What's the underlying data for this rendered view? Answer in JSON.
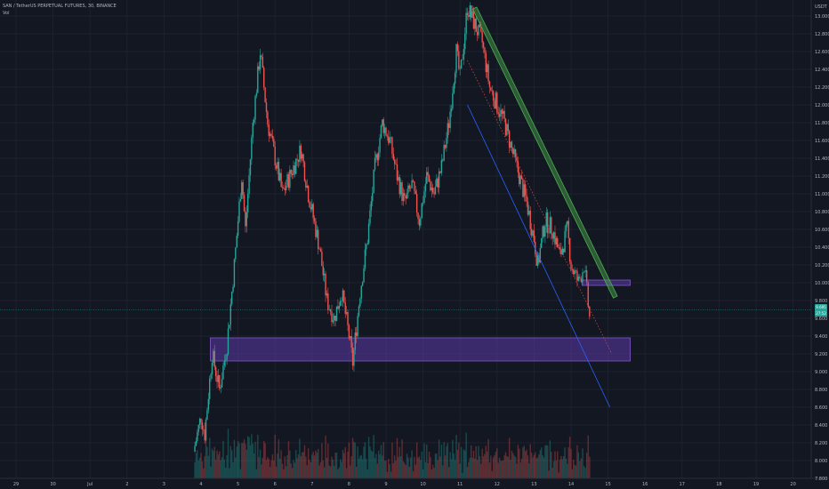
{
  "header": {
    "symbol_line": "SAN / TetherUS PERPETUAL FUTURES, 30, BINANCE",
    "vol_label": "Vol"
  },
  "price_axis": {
    "currency": "USDT",
    "ticks": [
      "13.000",
      "12.800",
      "12.600",
      "12.400",
      "12.200",
      "12.000",
      "11.800",
      "11.600",
      "11.400",
      "11.200",
      "11.000",
      "10.800",
      "10.600",
      "10.400",
      "10.200",
      "10.000",
      "9.800",
      "9.600",
      "9.400",
      "9.200",
      "9.000",
      "8.800",
      "8.600",
      "8.400",
      "8.200",
      "8.000",
      "7.800"
    ],
    "last_price": "9.695",
    "last_price_sub": "27:52"
  },
  "time_axis": {
    "ticks": [
      "29",
      "30",
      "Jul",
      "2",
      "3",
      "4",
      "5",
      "6",
      "7",
      "8",
      "9",
      "10",
      "11",
      "12",
      "13",
      "14",
      "15",
      "16",
      "17",
      "18",
      "19",
      "20"
    ]
  },
  "colors": {
    "background": "#131722",
    "up": "#26a69a",
    "down": "#ef5350",
    "zone": "#5b3aa8",
    "channel": "#4caf50",
    "trendline": "#2962ff"
  },
  "chart_data": {
    "type": "candlestick",
    "symbol": "SAN / TetherUS PERPETUAL FUTURES",
    "interval": "30",
    "exchange": "BINANCE",
    "y_unit": "USDT",
    "ylim": [
      7.8,
      13.1
    ],
    "x_range": [
      "2021-06-29",
      "2021-07-20"
    ],
    "last_price": 9.695,
    "price_path": [
      {
        "day": 4.8,
        "price": 8.1
      },
      {
        "day": 5.0,
        "price": 8.5
      },
      {
        "day": 5.1,
        "price": 8.3
      },
      {
        "day": 5.3,
        "price": 9.2
      },
      {
        "day": 5.5,
        "price": 8.8
      },
      {
        "day": 5.7,
        "price": 9.3
      },
      {
        "day": 5.9,
        "price": 10.2
      },
      {
        "day": 6.1,
        "price": 11.2
      },
      {
        "day": 6.2,
        "price": 10.6
      },
      {
        "day": 6.4,
        "price": 11.8
      },
      {
        "day": 6.5,
        "price": 12.2
      },
      {
        "day": 6.6,
        "price": 12.6
      },
      {
        "day": 6.8,
        "price": 11.8
      },
      {
        "day": 7.0,
        "price": 11.4
      },
      {
        "day": 7.2,
        "price": 11.0
      },
      {
        "day": 7.5,
        "price": 11.3
      },
      {
        "day": 7.7,
        "price": 11.5
      },
      {
        "day": 7.9,
        "price": 11.0
      },
      {
        "day": 8.2,
        "price": 10.4
      },
      {
        "day": 8.4,
        "price": 9.8
      },
      {
        "day": 8.6,
        "price": 9.6
      },
      {
        "day": 8.8,
        "price": 9.9
      },
      {
        "day": 9.0,
        "price": 9.4
      },
      {
        "day": 9.1,
        "price": 9.1
      },
      {
        "day": 9.3,
        "price": 9.9
      },
      {
        "day": 9.5,
        "price": 10.5
      },
      {
        "day": 9.7,
        "price": 11.3
      },
      {
        "day": 9.9,
        "price": 11.8
      },
      {
        "day": 10.1,
        "price": 11.6
      },
      {
        "day": 10.3,
        "price": 11.2
      },
      {
        "day": 10.5,
        "price": 10.9
      },
      {
        "day": 10.7,
        "price": 11.1
      },
      {
        "day": 10.9,
        "price": 10.7
      },
      {
        "day": 11.1,
        "price": 11.2
      },
      {
        "day": 11.3,
        "price": 11.0
      },
      {
        "day": 11.5,
        "price": 11.3
      },
      {
        "day": 11.7,
        "price": 11.8
      },
      {
        "day": 11.9,
        "price": 12.6
      },
      {
        "day": 12.0,
        "price": 12.3
      },
      {
        "day": 12.2,
        "price": 13.1
      },
      {
        "day": 12.4,
        "price": 12.9
      },
      {
        "day": 12.6,
        "price": 12.7
      },
      {
        "day": 12.8,
        "price": 12.2
      },
      {
        "day": 13.0,
        "price": 12.0
      },
      {
        "day": 13.2,
        "price": 11.8
      },
      {
        "day": 13.4,
        "price": 11.5
      },
      {
        "day": 13.6,
        "price": 11.2
      },
      {
        "day": 13.8,
        "price": 10.9
      },
      {
        "day": 14.0,
        "price": 10.5
      },
      {
        "day": 14.1,
        "price": 10.2
      },
      {
        "day": 14.3,
        "price": 10.7
      },
      {
        "day": 14.5,
        "price": 10.6
      },
      {
        "day": 14.7,
        "price": 10.3
      },
      {
        "day": 14.9,
        "price": 10.6
      },
      {
        "day": 15.0,
        "price": 10.2
      },
      {
        "day": 15.2,
        "price": 10.0
      },
      {
        "day": 15.35,
        "price": 10.2
      },
      {
        "day": 15.5,
        "price": 9.6
      }
    ],
    "drawings": {
      "support_zone": {
        "price_low": 9.12,
        "price_high": 9.38,
        "day_start": 5.25,
        "day_end": 16.6
      },
      "resistance_zone": {
        "price_low": 9.97,
        "price_high": 10.03,
        "day_start": 15.3,
        "day_end": 16.6
      },
      "descending_channel": {
        "start": {
          "day": 12.45,
          "price": 13.1
        },
        "end": {
          "day": 16.25,
          "price": 9.85
        }
      },
      "trendline": {
        "start": {
          "day": 12.2,
          "price": 12.0
        },
        "end": {
          "day": 16.05,
          "price": 8.6
        }
      },
      "dotted_projection": {
        "start": {
          "day": 12.2,
          "price": 12.5
        },
        "end": {
          "day": 16.1,
          "price": 9.2
        }
      }
    }
  }
}
